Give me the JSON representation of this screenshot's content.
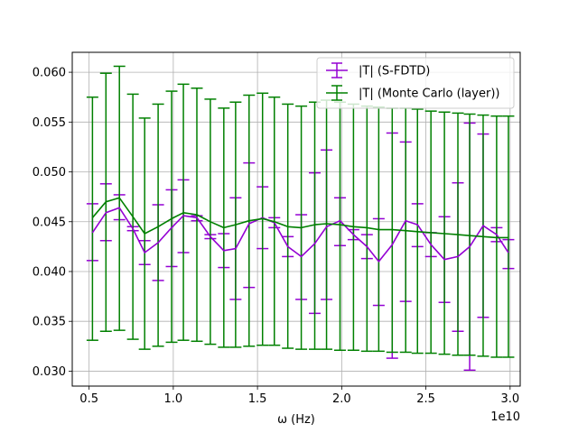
{
  "chart_data": {
    "type": "line",
    "title": "",
    "xlabel": "ω (Hz)",
    "ylabel": "",
    "x_offset_label": "1e10",
    "x_ticks": [
      0.5,
      1.0,
      1.5,
      2.0,
      2.5,
      3.0
    ],
    "x_tick_labels": [
      "0.5",
      "1.0",
      "1.5",
      "2.0",
      "2.5",
      "3.0"
    ],
    "y_ticks": [
      0.03,
      0.035,
      0.04,
      0.045,
      0.05,
      0.055,
      0.06
    ],
    "y_tick_labels": [
      "0.030",
      "0.035",
      "0.040",
      "0.045",
      "0.050",
      "0.055",
      "0.060"
    ],
    "xlim": [
      0.4,
      3.06
    ],
    "ylim": [
      0.0285,
      0.062
    ],
    "grid": true,
    "legend_position": "top-right",
    "x": [
      0.52,
      0.6,
      0.68,
      0.76,
      0.83,
      0.91,
      0.99,
      1.06,
      1.14,
      1.22,
      1.3,
      1.37,
      1.45,
      1.53,
      1.6,
      1.68,
      1.76,
      1.84,
      1.91,
      1.99,
      2.07,
      2.15,
      2.22,
      2.3,
      2.38,
      2.45,
      2.53,
      2.61,
      2.69,
      2.76,
      2.84,
      2.92,
      2.99
    ],
    "series": [
      {
        "name": "|T| (S-FDTD)",
        "color": "#9400d3",
        "y": [
          0.0439,
          0.0459,
          0.0464,
          0.0443,
          0.0419,
          0.0429,
          0.0444,
          0.0456,
          0.0454,
          0.0435,
          0.0421,
          0.0423,
          0.0448,
          0.0454,
          0.0449,
          0.0425,
          0.0415,
          0.0428,
          0.0445,
          0.0451,
          0.0437,
          0.0425,
          0.041,
          0.0427,
          0.0451,
          0.0447,
          0.0427,
          0.0412,
          0.0415,
          0.0425,
          0.0446,
          0.0437,
          0.0419
        ],
        "err_low": [
          0.0411,
          0.0431,
          0.0452,
          0.0441,
          0.0407,
          0.0391,
          0.0405,
          0.0419,
          0.0451,
          0.0433,
          0.0404,
          0.0372,
          0.0384,
          0.0423,
          0.0444,
          0.0415,
          0.0372,
          0.0358,
          0.0372,
          0.0426,
          0.0432,
          0.0413,
          0.0366,
          0.0313,
          0.037,
          0.0425,
          0.0415,
          0.0369,
          0.034,
          0.0301,
          0.0354,
          0.043,
          0.0403
        ],
        "err_high": [
          0.0468,
          0.0488,
          0.0477,
          0.0445,
          0.0431,
          0.0467,
          0.0482,
          0.0492,
          0.0456,
          0.0437,
          0.0438,
          0.0474,
          0.0509,
          0.0485,
          0.0454,
          0.0435,
          0.0457,
          0.0499,
          0.0522,
          0.0474,
          0.0442,
          0.0437,
          0.0453,
          0.0539,
          0.053,
          0.0468,
          0.0439,
          0.0455,
          0.0489,
          0.0549,
          0.0538,
          0.0444,
          0.0432
        ]
      },
      {
        "name": "|T| (Monte Carlo (layer))",
        "color": "#008000",
        "y": [
          0.0454,
          0.047,
          0.0474,
          0.0455,
          0.0438,
          0.0445,
          0.0453,
          0.0459,
          0.0457,
          0.045,
          0.0444,
          0.0447,
          0.0451,
          0.0453,
          0.045,
          0.0445,
          0.0444,
          0.0447,
          0.0448,
          0.0447,
          0.0445,
          0.0444,
          0.0442,
          0.0442,
          0.0441,
          0.044,
          0.0439,
          0.0438,
          0.0437,
          0.0436,
          0.0435,
          0.0434,
          0.0434
        ],
        "err_low": [
          0.0331,
          0.034,
          0.0341,
          0.0332,
          0.0322,
          0.0325,
          0.0329,
          0.0331,
          0.033,
          0.0327,
          0.0324,
          0.0324,
          0.0325,
          0.0326,
          0.0326,
          0.0323,
          0.0322,
          0.0322,
          0.0322,
          0.0321,
          0.0321,
          0.032,
          0.032,
          0.0319,
          0.0319,
          0.0318,
          0.0318,
          0.0317,
          0.0316,
          0.0316,
          0.0315,
          0.0314,
          0.0314
        ],
        "err_high": [
          0.0575,
          0.0599,
          0.0606,
          0.0578,
          0.0554,
          0.0568,
          0.0581,
          0.0588,
          0.0584,
          0.0573,
          0.0564,
          0.057,
          0.0577,
          0.0579,
          0.0575,
          0.0568,
          0.0566,
          0.057,
          0.0572,
          0.057,
          0.0568,
          0.0566,
          0.0565,
          0.0564,
          0.0564,
          0.0563,
          0.0561,
          0.056,
          0.0559,
          0.0558,
          0.0557,
          0.0556,
          0.0556
        ]
      }
    ]
  }
}
